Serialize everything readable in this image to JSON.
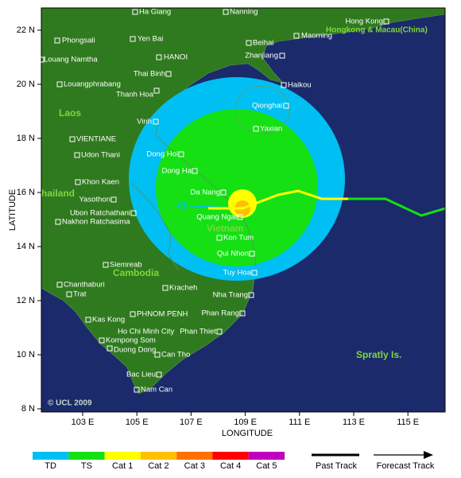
{
  "axes": {
    "y_title": "LATITUDE",
    "x_title": "LONGITUDE",
    "lat_ticks": [
      "22 N",
      "20 N",
      "18 N",
      "16 N",
      "14 N",
      "12 N",
      "10 N",
      "8 N"
    ],
    "lon_ticks": [
      "103 E",
      "105 E",
      "107 E",
      "109 E",
      "111 E",
      "113 E",
      "115 E"
    ]
  },
  "places": [
    "Ha Giang",
    "Nanning",
    "Hong Kong",
    "Phongsali",
    "Yen Bai",
    "Beihai",
    "Maoming",
    "Louang Namtha",
    "HANOI",
    "Zhanjiang",
    "Louangphrabang",
    "Thai Binh",
    "Haikou",
    "Thanh Hoa",
    "Qionghai",
    "Vinh",
    "VIENTIANE",
    "Yaxian",
    "Udon Thani",
    "Dong Hoi",
    "Dong Ha",
    "Khon Kaen",
    "Da Nang",
    "Yasothon",
    "Ubon Ratchathani",
    "Quang Ngai",
    "Nakhon Ratchasima",
    "Kon Tum",
    "Qui Nhon",
    "Siemreab",
    "Tuy Hoa",
    "Chanthaburi",
    "Kracheh",
    "Trat",
    "Nha Trang",
    "Phan Rang",
    "PHNOM PENH",
    "Kas Kong",
    "Ho Chi Minh City",
    "Phan Thiet",
    "Kompong Som",
    "Duong Dong",
    "Can Tho",
    "Bac Lieu",
    "Nam Can"
  ],
  "regions": [
    "Hongkong & Macau(China)",
    "Laos",
    "hailand",
    "Vietnam",
    "Cambodia",
    "Spratly Is."
  ],
  "credit": "© UCL 2009",
  "legend": {
    "categories": [
      "TD",
      "TS",
      "Cat 1",
      "Cat 2",
      "Cat 3",
      "Cat 4",
      "Cat 5"
    ],
    "tracks": [
      "Past Track",
      "Forecast Track"
    ]
  }
}
